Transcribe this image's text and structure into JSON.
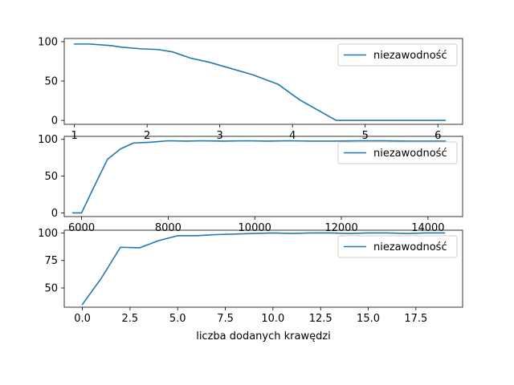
{
  "chart_data": [
    {
      "type": "line",
      "xlim": [
        0.86,
        6.34
      ],
      "ylim": [
        -5,
        104
      ],
      "xticks": [
        1,
        2,
        3,
        4,
        5,
        6
      ],
      "xtick_labels": [
        "1",
        "2",
        "3",
        "4",
        "5",
        "6"
      ],
      "yticks": [
        0,
        50,
        100
      ],
      "ytick_labels": [
        "0",
        "50",
        "100"
      ],
      "xlabel": "",
      "legend_position": "upper right",
      "series": [
        {
          "name": "niezawodność",
          "color": "#1f77b4",
          "x": [
            1.0,
            1.2,
            1.5,
            1.65,
            1.9,
            2.15,
            2.35,
            2.6,
            2.85,
            3.15,
            3.45,
            3.8,
            4.1,
            4.6,
            4.95,
            5.3,
            5.7,
            6.1
          ],
          "y": [
            97,
            97,
            95,
            93,
            91,
            90,
            87,
            79,
            74,
            66,
            58,
            46,
            26,
            0,
            0,
            0,
            0,
            0
          ]
        }
      ]
    },
    {
      "type": "line",
      "xlim": [
        5600,
        14800
      ],
      "ylim": [
        -5,
        104
      ],
      "xticks": [
        6000,
        8000,
        10000,
        12000,
        14000
      ],
      "xtick_labels": [
        "6000",
        "8000",
        "10000",
        "12000",
        "14000"
      ],
      "yticks": [
        0,
        50,
        100
      ],
      "ytick_labels": [
        "0",
        "50",
        "100"
      ],
      "xlabel": "",
      "legend_position": "upper right",
      "series": [
        {
          "name": "niezawodność",
          "color": "#1f77b4",
          "x": [
            5800,
            6000,
            6300,
            6600,
            6900,
            7200,
            7600,
            8000,
            8400,
            8800,
            9300,
            9800,
            10300,
            10800,
            11300,
            11800,
            12400,
            13000,
            13600,
            14400
          ],
          "y": [
            0,
            0,
            37,
            73,
            87,
            95,
            96,
            98,
            97.5,
            98,
            97.5,
            98,
            97.5,
            98,
            97.5,
            97.5,
            98,
            98,
            97.5,
            97.5
          ]
        }
      ]
    },
    {
      "type": "line",
      "xlim": [
        -0.95,
        19.95
      ],
      "ylim": [
        32.5,
        102.5
      ],
      "xticks": [
        0,
        2.5,
        5,
        7.5,
        10,
        12.5,
        15,
        17.5
      ],
      "xtick_labels": [
        "0.0",
        "2.5",
        "5.0",
        "7.5",
        "10.0",
        "12.5",
        "15.0",
        "17.5"
      ],
      "yticks": [
        50,
        75,
        100
      ],
      "ytick_labels": [
        "50",
        "75",
        "100"
      ],
      "xlabel": "liczba dodanych krawędzi",
      "legend_position": "upper right",
      "series": [
        {
          "name": "niezawodność",
          "color": "#1f77b4",
          "x": [
            0,
            1,
            2,
            3,
            4,
            5,
            6,
            7,
            8,
            9,
            10,
            11,
            12,
            13,
            14,
            15,
            16,
            17,
            18,
            19
          ],
          "y": [
            35,
            59,
            87,
            86.5,
            93,
            97.5,
            97.5,
            98.5,
            99,
            99.5,
            100,
            99.5,
            100,
            100,
            99.5,
            100,
            100,
            99.5,
            100,
            100
          ]
        }
      ]
    }
  ]
}
